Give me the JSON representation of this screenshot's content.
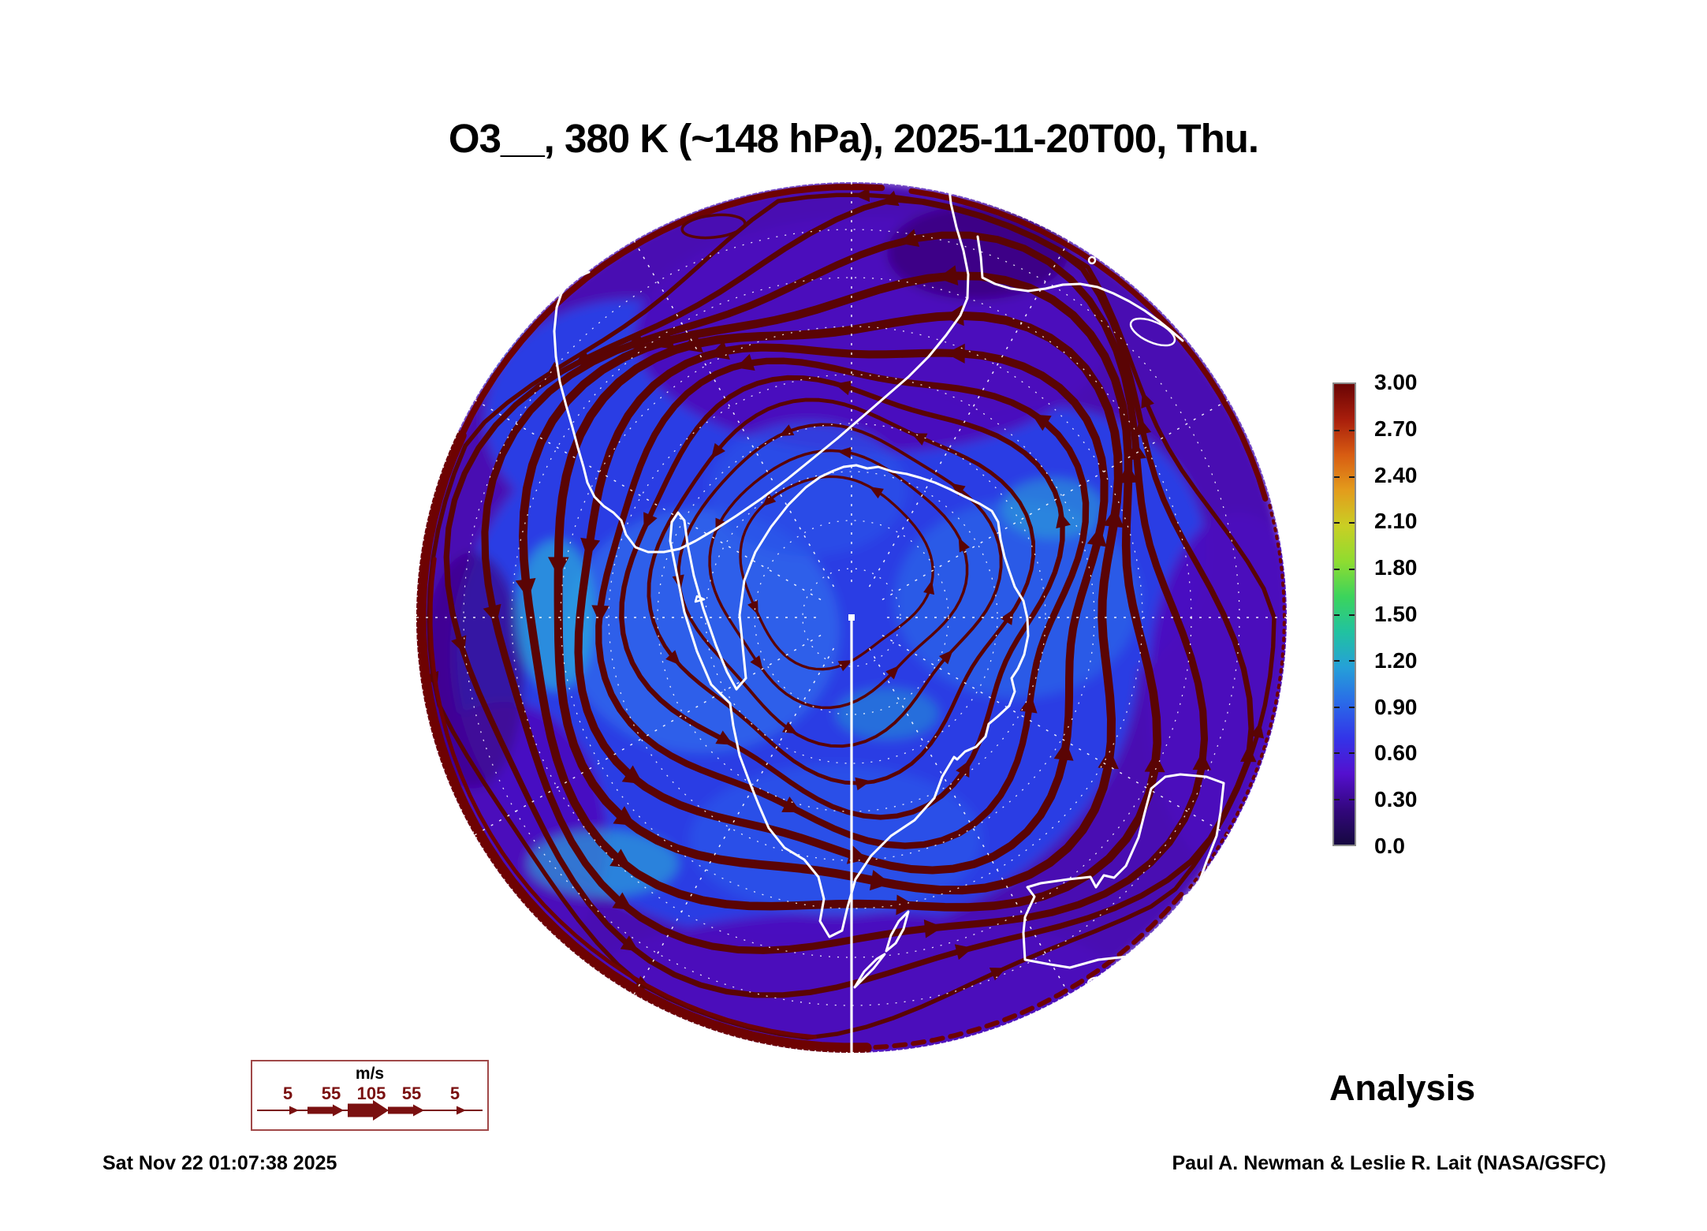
{
  "header": {
    "title": "O3__, 380 K (~148 hPa), 2025-11-20T00, Thu."
  },
  "colorbar": {
    "tick_labels": [
      "3.00",
      "2.70",
      "2.40",
      "2.10",
      "1.80",
      "1.50",
      "1.20",
      "0.90",
      "0.60",
      "0.30",
      "0.0"
    ],
    "min": 0.0,
    "max": 3.0,
    "gradient_stops_bottom_to_top": [
      "#160840",
      "#33077e",
      "#5410cf",
      "#3334e8",
      "#2a6ae8",
      "#25a0d8",
      "#21c2a0",
      "#3bd45c",
      "#8fdc30",
      "#c9cf24",
      "#e39c1c",
      "#d85c12",
      "#a81e0c",
      "#6a0404"
    ]
  },
  "wind_legend": {
    "units_label": "m/s",
    "speed_labels": [
      "5",
      "55",
      "105",
      "55",
      "5"
    ],
    "accent_color": "#7a1010"
  },
  "footer": {
    "run_type_label": "Analysis",
    "generated_timestamp": "Sat Nov 22 01:07:38 2025",
    "credit": "Paul A. Newman & Leslie R. Lait (NASA/GSFC)"
  },
  "colors": {
    "streamline": "#5a0404",
    "rim": "#6e0202",
    "coastline": "#ffffff",
    "graticule": "#ffffff",
    "field_purple": "#4c09bc",
    "field_blue": "#2b3ce4",
    "field_light_blue": "#2e63ea",
    "field_cyan": "#2aa7dc"
  },
  "chart_data": {
    "type": "heatmap",
    "title": "O3__, 380 K (~148 hPa), 2025-11-20T00, Thu.",
    "projection": "south polar stereographic disk centered on Antarctica",
    "field": "O3",
    "level": "380 K (~148 hPa)",
    "valid_time": "2025-11-20T00, Thu.",
    "colorbar_ticks": [
      3.0,
      2.7,
      2.4,
      2.1,
      1.8,
      1.5,
      1.2,
      0.9,
      0.6,
      0.3,
      0.0
    ],
    "colorbar_range": [
      0.0,
      3.0
    ],
    "field_character": "low O3 (0.3-0.9) over polar cap shown blue/purple; values rise toward disk edge",
    "overlay": "wind streamlines with arrowheads, thickness scaled by speed",
    "wind_scale_mps": [
      5,
      55,
      105,
      55,
      5
    ],
    "annotations": [
      "Analysis",
      "Sat Nov 22 01:07:38 2025",
      "Paul A. Newman & Leslie R. Lait (NASA/GSFC)"
    ],
    "legend_position": "colorbar right of map; wind scale box lower-left",
    "grid": "white dashed latitude circles and 30-degree meridians; solid meridian from pole to bottom edge"
  }
}
